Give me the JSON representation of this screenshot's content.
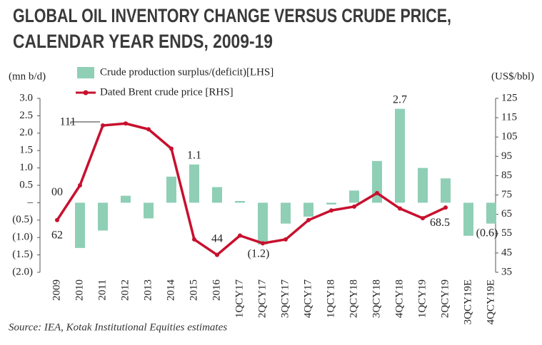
{
  "chart_data": {
    "type": "bar-line",
    "title": [
      "GLOBAL OIL INVENTORY CHANGE VERSUS CRUDE PRICE,",
      "CALENDAR YEAR ENDS, 2009-19"
    ],
    "y_label": "(mn b/d)",
    "y2_label": "(US$/bbl)",
    "source": "Source: IEA, Kotak Institutional Equities estimates",
    "categories": [
      "2009",
      "2010",
      "2011",
      "2012",
      "2013",
      "2014",
      "2015",
      "2016",
      "1QCY17",
      "2QCY17",
      "3QCY17",
      "4QCY17",
      "1QCY18",
      "2QCY18",
      "3QCY18",
      "4QCY18",
      "1QCY19",
      "2QCY19",
      "3QCY19E",
      "4QCY19E"
    ],
    "series": [
      {
        "name": "Crude production surplus/(deficit)[LHS]",
        "kind": "bar",
        "color": "#8fcfb6",
        "values": [
          0,
          -1.3,
          -0.8,
          0.2,
          -0.45,
          0.75,
          1.1,
          0.45,
          0.05,
          -1.2,
          -0.6,
          -0.4,
          -0.05,
          0.35,
          1.2,
          2.7,
          1.0,
          0.7,
          -0.95,
          -0.6
        ],
        "value_labels": [
          "00",
          null,
          null,
          null,
          null,
          null,
          "1.1",
          null,
          null,
          "(1.2)",
          null,
          null,
          null,
          null,
          null,
          "2.7",
          null,
          null,
          null,
          "(0.6)"
        ]
      },
      {
        "name": "Dated Brent crude price [RHS]",
        "kind": "line",
        "axis": "y2",
        "color": "#c8102e",
        "values": [
          62,
          80,
          111,
          112,
          109,
          99,
          52,
          44,
          54,
          50,
          52,
          62,
          67,
          69,
          76,
          68,
          63,
          68.5,
          null,
          null
        ],
        "value_labels": [
          "62",
          null,
          "111",
          null,
          null,
          null,
          null,
          "44",
          null,
          null,
          null,
          null,
          null,
          null,
          null,
          null,
          null,
          "68.5",
          null,
          null
        ]
      }
    ],
    "ylim": [
      -2,
      3
    ],
    "yticks": [
      {
        "value": 3,
        "label": "3.0"
      },
      {
        "value": 2.5,
        "label": "2.5"
      },
      {
        "value": 2,
        "label": "2.0"
      },
      {
        "value": 1.5,
        "label": "1.5"
      },
      {
        "value": 1,
        "label": "1.0"
      },
      {
        "value": 0.5,
        "label": "0.5"
      },
      {
        "value": 0,
        "label": "–"
      },
      {
        "value": -0.5,
        "label": "(0.5)"
      },
      {
        "value": -1,
        "label": "(1.0)"
      },
      {
        "value": -1.5,
        "label": "(1.5)"
      },
      {
        "value": -2,
        "label": "(2.0)"
      }
    ],
    "y2lim": [
      35,
      125
    ],
    "y2ticks": [
      125,
      115,
      105,
      95,
      85,
      75,
      65,
      55,
      45,
      35
    ]
  }
}
